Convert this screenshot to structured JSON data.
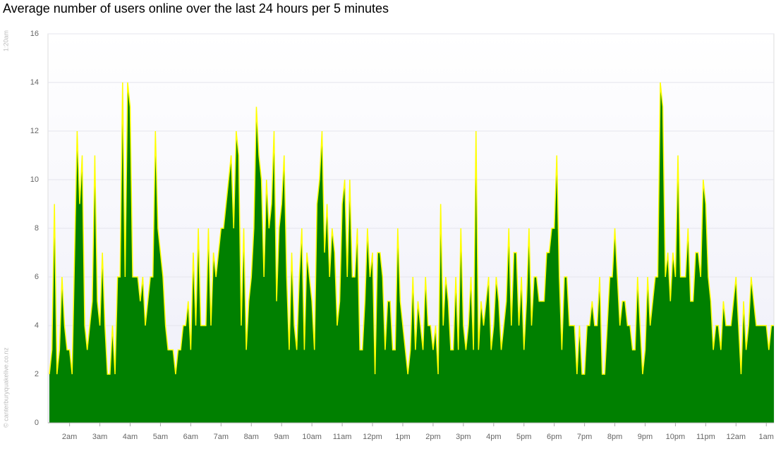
{
  "chart_data": {
    "type": "area",
    "title": "Average number of users online over the last 24 hours per 5 minutes",
    "start_label": "1:20am",
    "credit": "© canterburyquakelive.co.nz",
    "fill_color": "#008000",
    "line_color": "#ffff00",
    "values": [
      2,
      3,
      9,
      2,
      3,
      6,
      4,
      3,
      3,
      2,
      7,
      12,
      9,
      11,
      4,
      3,
      4,
      5,
      11,
      5,
      4,
      7,
      4,
      2,
      2,
      4,
      2,
      6,
      6,
      14,
      6,
      14,
      13,
      6,
      6,
      6,
      5,
      6,
      4,
      5,
      6,
      6,
      12,
      8,
      7,
      6,
      4,
      3,
      3,
      3,
      2,
      3,
      3,
      4,
      4,
      5,
      3,
      7,
      4,
      8,
      4,
      4,
      4,
      8,
      4,
      7,
      6,
      7,
      8,
      8,
      9,
      10,
      11,
      8,
      12,
      11,
      4,
      8,
      3,
      5,
      6,
      8,
      13,
      11,
      10,
      6,
      10,
      8,
      9,
      12,
      5,
      8,
      9,
      11,
      6,
      3,
      7,
      4,
      3,
      6,
      8,
      3,
      7,
      6,
      5,
      3,
      9,
      10,
      12,
      7,
      9,
      6,
      8,
      7,
      4,
      5,
      9,
      10,
      6,
      10,
      6,
      6,
      8,
      3,
      3,
      5,
      8,
      6,
      7,
      2,
      7,
      7,
      6,
      3,
      5,
      5,
      3,
      3,
      8,
      5,
      4,
      3,
      2,
      3,
      6,
      3,
      5,
      4,
      3,
      6,
      4,
      4,
      3,
      4,
      2,
      9,
      4,
      6,
      5,
      3,
      3,
      6,
      3,
      8,
      4,
      3,
      4,
      6,
      3,
      12,
      3,
      5,
      4,
      5,
      6,
      3,
      4,
      6,
      5,
      3,
      4,
      5,
      8,
      4,
      7,
      7,
      4,
      6,
      3,
      5,
      8,
      4,
      6,
      6,
      5,
      5,
      5,
      7,
      7,
      8,
      8,
      11,
      6,
      3,
      6,
      6,
      4,
      4,
      4,
      2,
      4,
      2,
      2,
      4,
      4,
      5,
      4,
      4,
      6,
      2,
      2,
      4,
      6,
      6,
      8,
      6,
      4,
      5,
      5,
      4,
      4,
      3,
      3,
      6,
      4,
      2,
      3,
      6,
      4,
      5,
      6,
      6,
      14,
      13,
      6,
      7,
      5,
      7,
      6,
      11,
      6,
      6,
      6,
      8,
      5,
      5,
      7,
      7,
      6,
      10,
      9,
      6,
      5,
      3,
      4,
      4,
      3,
      5,
      4,
      4,
      4,
      5,
      6,
      4,
      2,
      5,
      3,
      4,
      6,
      5,
      4,
      4,
      4,
      4,
      4,
      3,
      4,
      4
    ],
    "xlim": [
      0,
      287
    ],
    "xticks": [
      {
        "value": 8,
        "label": "2am"
      },
      {
        "value": 20,
        "label": "3am"
      },
      {
        "value": 32,
        "label": "4am"
      },
      {
        "value": 44,
        "label": "5am"
      },
      {
        "value": 56,
        "label": "6am"
      },
      {
        "value": 68,
        "label": "7am"
      },
      {
        "value": 80,
        "label": "8am"
      },
      {
        "value": 92,
        "label": "9am"
      },
      {
        "value": 104,
        "label": "10am"
      },
      {
        "value": 116,
        "label": "11am"
      },
      {
        "value": 128,
        "label": "12pm"
      },
      {
        "value": 140,
        "label": "1pm"
      },
      {
        "value": 152,
        "label": "2pm"
      },
      {
        "value": 164,
        "label": "3pm"
      },
      {
        "value": 176,
        "label": "4pm"
      },
      {
        "value": 188,
        "label": "5pm"
      },
      {
        "value": 200,
        "label": "6pm"
      },
      {
        "value": 212,
        "label": "7pm"
      },
      {
        "value": 224,
        "label": "8pm"
      },
      {
        "value": 236,
        "label": "9pm"
      },
      {
        "value": 248,
        "label": "10pm"
      },
      {
        "value": 260,
        "label": "11pm"
      },
      {
        "value": 272,
        "label": "12am"
      },
      {
        "value": 284,
        "label": "1am"
      }
    ],
    "ylim": [
      0,
      16
    ],
    "yticks": [
      0,
      2,
      4,
      6,
      8,
      10,
      12,
      14,
      16
    ],
    "grid": true
  }
}
